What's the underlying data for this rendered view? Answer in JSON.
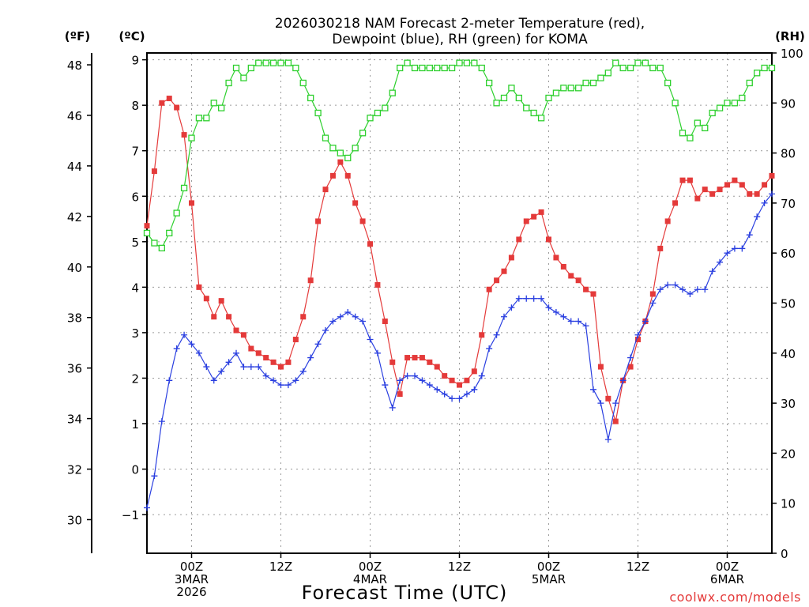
{
  "chart_data": {
    "type": "line",
    "title_lines": [
      "2026030218 NAM Forecast 2-meter Temperature (red),",
      "Dewpoint (blue), RH (green) for KOMA"
    ],
    "unit_labels": {
      "fahrenheit": "(ºF)",
      "celsius": "(ºC)",
      "rh": "(RH)"
    },
    "xlabel": "Forecast Time (UTC)",
    "credit": "coolwx.com/models",
    "x_range_hours": [
      0,
      84
    ],
    "celsius_range": [
      -1.85,
      9.15
    ],
    "fahrenheit_ticks": [
      "30",
      "32",
      "34",
      "36",
      "38",
      "40",
      "42",
      "44",
      "46",
      "48"
    ],
    "celsius_ticks": [
      "−1",
      "0",
      "1",
      "2",
      "3",
      "4",
      "5",
      "6",
      "7",
      "8",
      "9"
    ],
    "rh_range": [
      0,
      100
    ],
    "rh_ticks": [
      "0",
      "10",
      "20",
      "30",
      "40",
      "50",
      "60",
      "70",
      "80",
      "90",
      "100"
    ],
    "x_ticks": [
      {
        "hour": 6,
        "lines": [
          "00Z",
          "3MAR",
          "2026"
        ]
      },
      {
        "hour": 18,
        "lines": [
          "12Z"
        ]
      },
      {
        "hour": 30,
        "lines": [
          "00Z",
          "4MAR"
        ]
      },
      {
        "hour": 42,
        "lines": [
          "12Z"
        ]
      },
      {
        "hour": 54,
        "lines": [
          "00Z",
          "5MAR"
        ]
      },
      {
        "hour": 66,
        "lines": [
          "12Z"
        ]
      },
      {
        "hour": 78,
        "lines": [
          "00Z",
          "6MAR"
        ]
      }
    ],
    "series": [
      {
        "name": "Temperature (°C)",
        "axis": "celsius",
        "color": "#e43a3a",
        "marker": "filled-square",
        "values": [
          5.35,
          6.55,
          8.05,
          8.15,
          7.95,
          7.35,
          5.85,
          4.0,
          3.75,
          3.35,
          3.7,
          3.35,
          3.05,
          2.95,
          2.65,
          2.55,
          2.45,
          2.35,
          2.25,
          2.35,
          2.85,
          3.35,
          4.15,
          5.45,
          6.15,
          6.45,
          6.75,
          6.45,
          5.85,
          5.45,
          4.95,
          4.05,
          3.25,
          2.35,
          1.65,
          2.45,
          2.45,
          2.45,
          2.35,
          2.25,
          2.05,
          1.95,
          1.85,
          1.95,
          2.15,
          2.95,
          3.95,
          4.15,
          4.35,
          4.65,
          5.05,
          5.45,
          5.55,
          5.65,
          5.05,
          4.65,
          4.45,
          4.25,
          4.15,
          3.95,
          3.85,
          2.25,
          1.55,
          1.05,
          1.95,
          2.25,
          2.85,
          3.25,
          3.85,
          4.85,
          5.45,
          5.85,
          6.35,
          6.35,
          5.95,
          6.15,
          6.05,
          6.15,
          6.25,
          6.35,
          6.25,
          6.05,
          6.05,
          6.25,
          6.45
        ]
      },
      {
        "name": "Dewpoint (°C)",
        "axis": "celsius",
        "color": "#2a3fe0",
        "marker": "plus",
        "values": [
          -0.85,
          -0.15,
          1.05,
          1.95,
          2.65,
          2.95,
          2.75,
          2.55,
          2.25,
          1.95,
          2.15,
          2.35,
          2.55,
          2.25,
          2.25,
          2.25,
          2.05,
          1.95,
          1.85,
          1.85,
          1.95,
          2.15,
          2.45,
          2.75,
          3.05,
          3.25,
          3.35,
          3.45,
          3.35,
          3.25,
          2.85,
          2.55,
          1.85,
          1.35,
          1.95,
          2.05,
          2.05,
          1.95,
          1.85,
          1.75,
          1.65,
          1.55,
          1.55,
          1.65,
          1.75,
          2.05,
          2.65,
          2.95,
          3.35,
          3.55,
          3.75,
          3.75,
          3.75,
          3.75,
          3.55,
          3.45,
          3.35,
          3.25,
          3.25,
          3.15,
          1.75,
          1.45,
          0.65,
          1.45,
          1.95,
          2.45,
          2.95,
          3.25,
          3.65,
          3.95,
          4.05,
          4.05,
          3.95,
          3.85,
          3.95,
          3.95,
          4.35,
          4.55,
          4.75,
          4.85,
          4.85,
          5.15,
          5.55,
          5.85,
          6.05
        ]
      },
      {
        "name": "RH (%)",
        "axis": "rh",
        "color": "#2ed02e",
        "marker": "open-square",
        "values": [
          64,
          62,
          61,
          64,
          68,
          73,
          83,
          87,
          87,
          90,
          89,
          94,
          97,
          95,
          97,
          98,
          98,
          98,
          98,
          98,
          97,
          94,
          91,
          88,
          83,
          81,
          80,
          79,
          81,
          84,
          87,
          88,
          89,
          92,
          97,
          98,
          97,
          97,
          97,
          97,
          97,
          97,
          98,
          98,
          98,
          97,
          94,
          90,
          91,
          93,
          91,
          89,
          88,
          87,
          91,
          92,
          93,
          93,
          93,
          94,
          94,
          95,
          96,
          98,
          97,
          97,
          98,
          98,
          97,
          97,
          94,
          90,
          84,
          83,
          86,
          85,
          88,
          89,
          90,
          90,
          91,
          94,
          96,
          97,
          97
        ]
      }
    ]
  }
}
